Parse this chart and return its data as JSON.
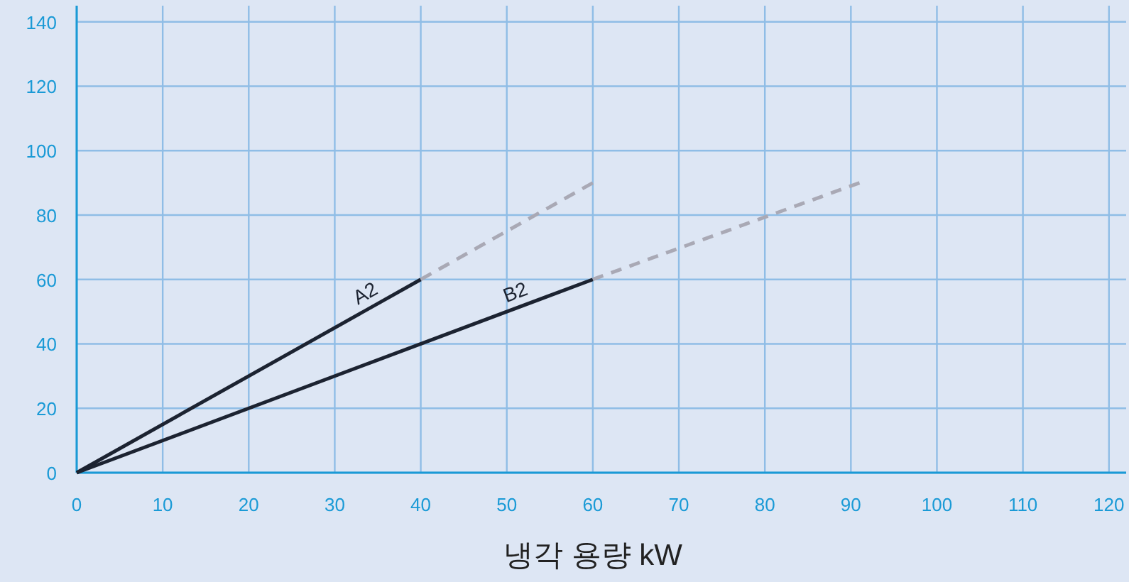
{
  "chart_data": {
    "type": "line",
    "xlabel": "냉각 용량 kW",
    "xlim": [
      0,
      122
    ],
    "ylim": [
      0,
      145
    ],
    "xticks": [
      0,
      10,
      20,
      30,
      40,
      50,
      60,
      70,
      80,
      90,
      100,
      110,
      120
    ],
    "yticks": [
      0,
      20,
      40,
      60,
      80,
      100,
      120,
      140
    ],
    "grid": true,
    "marker": "none",
    "series": [
      {
        "name": "A2",
        "color": "#1c2331",
        "line_style": "solid",
        "x": [
          0,
          40
        ],
        "values": [
          0,
          60
        ]
      },
      {
        "name": "B2",
        "color": "#1c2331",
        "line_style": "solid",
        "x": [
          0,
          60
        ],
        "values": [
          0,
          60
        ]
      },
      {
        "color": "#a9a9b5",
        "line_style": "dashed",
        "x": [
          40,
          60
        ],
        "values": [
          60,
          90
        ]
      },
      {
        "color": "#a9a9b5",
        "line_style": "dashed",
        "x": [
          60,
          91
        ],
        "values": [
          60,
          90
        ]
      }
    ]
  }
}
